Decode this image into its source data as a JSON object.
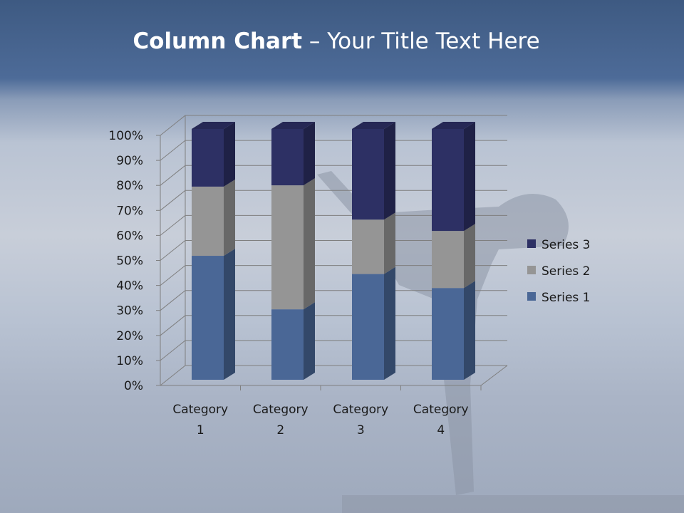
{
  "slide": {
    "title_bold": "Column Chart",
    "title_rest": " – Your Title Text Here"
  },
  "chart_data": {
    "type": "bar",
    "subtype": "100% stacked 3D column",
    "categories": [
      "Category 1",
      "Category 2",
      "Category 3",
      "Category 4"
    ],
    "series": [
      {
        "name": "Series 1",
        "values": [
          4.3,
          2.5,
          3.5,
          4.5
        ],
        "color": "#4a6796"
      },
      {
        "name": "Series 2",
        "values": [
          2.4,
          4.4,
          1.8,
          2.8
        ],
        "color": "#959595"
      },
      {
        "name": "Series 3",
        "values": [
          2,
          2,
          3,
          5
        ],
        "color": "#2d3064"
      }
    ],
    "yticks": [
      "0%",
      "10%",
      "20%",
      "30%",
      "40%",
      "50%",
      "60%",
      "70%",
      "80%",
      "90%",
      "100%"
    ],
    "ylim": [
      0,
      100
    ],
    "grid": true,
    "legend": "right"
  }
}
